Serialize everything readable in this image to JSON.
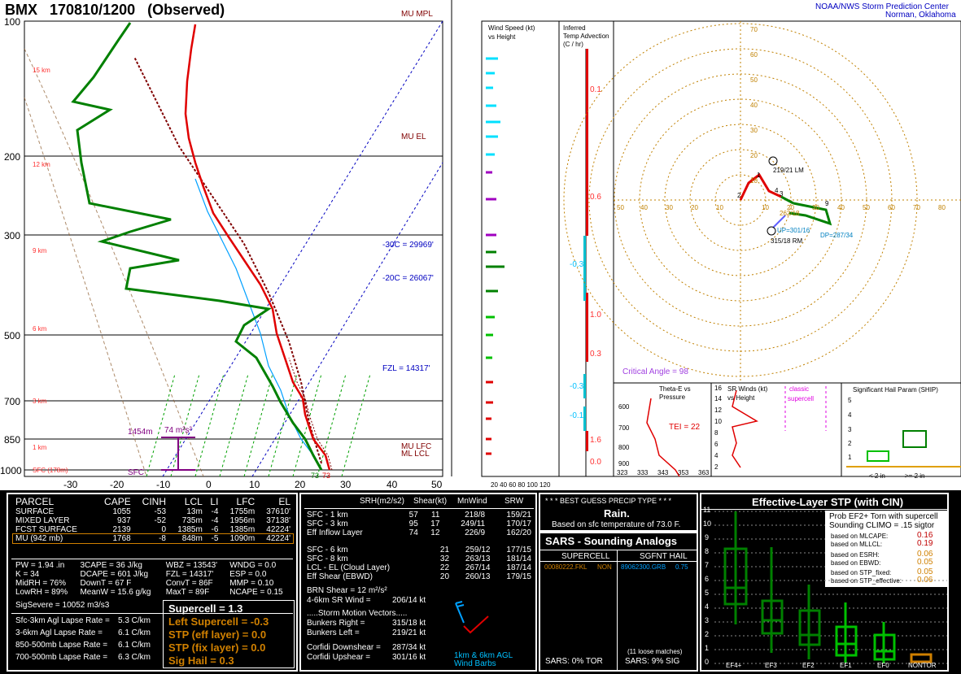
{
  "header": {
    "station": "BMX",
    "datetime": "170810/1200",
    "status": "(Observed)",
    "org_line1": "NOAA/NWS Storm Prediction Center",
    "org_line2": "Norman, Oklahoma"
  },
  "skewt": {
    "pressure_labels": [
      "100",
      "200",
      "300",
      "500",
      "700",
      "850",
      "1000"
    ],
    "temp_labels": [
      "-30",
      "-20",
      "-10",
      "0",
      "10",
      "20",
      "30",
      "40",
      "50"
    ],
    "height_labels": [
      "15 km",
      "12 km",
      "9 km",
      "6 km",
      "3 km",
      "1 km",
      "SFC (178m)"
    ],
    "annotations": {
      "mu_mpl": "MU MPL",
      "mu_el": "MU EL",
      "m30c": "-30C = 29969'",
      "m20c": "-20C = 26067'",
      "fzl": "FZL = 14317'",
      "mu_lfc": "MU LFC",
      "ml_lcl": "ML LCL",
      "sfc": "SFC",
      "sfc_temp": "73",
      "sfc_dew": "73",
      "effective_bottom": "1454m",
      "effective_srh": "74 m²s²"
    },
    "colors": {
      "temp": "#e00000",
      "dewpoint": "#008000",
      "virtual": "#800000",
      "wetbulb": "#00a0ff"
    }
  },
  "wind_panel": {
    "title_line1": "Wind Speed (kt)",
    "title_line2": "vs Height",
    "axis": "20 40 60 80 100 120"
  },
  "advection_panel": {
    "title_line1": "Inferred",
    "title_line2": "Temp Advection",
    "title_line3": "(C / hr)",
    "values": [
      "0.1",
      "0.6",
      "-0.3",
      "1.0",
      "0.3",
      "-0.3",
      "-0.1",
      "1.6",
      "0.0"
    ]
  },
  "hodograph": {
    "rings": [
      "10",
      "20",
      "30",
      "40",
      "50",
      "60",
      "70"
    ],
    "xlabels": [
      "50",
      "40",
      "30",
      "20",
      "10",
      "10",
      "20",
      "30",
      "40",
      "50",
      "60",
      "70",
      "80"
    ],
    "bunkers_left": "219/21 LM",
    "bunkers_right": "315/18 RM",
    "mean_wind_label": "262/18",
    "dp": "DP=287/34",
    "up": "UP=301/16",
    "critical_angle": "Critical Angle = 98",
    "points": [
      "1",
      "2",
      "3",
      "4",
      "9"
    ]
  },
  "theta_panel": {
    "title_line1": "Theta-E vs",
    "title_line2": "Pressure",
    "tei": "TEI = 22",
    "ylabels": [
      "600",
      "700",
      "800",
      "900"
    ],
    "xlabels": [
      "323",
      "333",
      "343",
      "353",
      "363"
    ]
  },
  "srw_panel": {
    "title_line1": "SR Winds (kt)",
    "title_line2": "vs Height",
    "classic_line1": "classic",
    "classic_line2": "supercell",
    "ylabels": [
      "16",
      "14",
      "12",
      "10",
      "8",
      "6",
      "4",
      "2"
    ]
  },
  "ship_panel": {
    "title": "Significant Hail Param (SHIP)",
    "ylabels": [
      "5",
      "4",
      "3",
      "2",
      "1"
    ],
    "x1": "< 2 in",
    "x2": ">= 2 in"
  },
  "parcel": {
    "headers": [
      "PARCEL",
      "CAPE",
      "CINH",
      "LCL",
      "LI",
      "LFC",
      "EL"
    ],
    "rows": [
      [
        "SURFACE",
        "1055",
        "-53",
        "13m",
        "-4",
        "1755m",
        "37610'"
      ],
      [
        "MIXED LAYER",
        "937",
        "-52",
        "735m",
        "-4",
        "1956m",
        "37138'"
      ],
      [
        "FCST SURFACE",
        "2139",
        "0",
        "1385m",
        "-6",
        "1385m",
        "42224'"
      ],
      [
        "MU   (942 mb)",
        "1768",
        "-8",
        "848m",
        "-5",
        "1090m",
        "42224'"
      ]
    ],
    "indices": [
      [
        "PW = 1.94 .in",
        "3CAPE = 36 J/kg",
        "WBZ = 13543'",
        "WNDG = 0.0"
      ],
      [
        "K = 34",
        "DCAPE = 601 J/kg",
        "FZL = 14317'",
        "ESP = 0.0"
      ],
      [
        "MidRH = 76%",
        "DownT = 67 F",
        "ConvT = 86F",
        "MMP = 0.10"
      ],
      [
        "LowRH = 89%",
        "MeanW = 15.6 g/kg",
        "MaxT = 89F",
        "NCAPE = 0.15"
      ]
    ],
    "sigsevere": "SigSevere = 10052 m3/s3",
    "lapse": [
      [
        "Sfc-3km Agl Lapse Rate =",
        "5.3 C/km"
      ],
      [
        "3-6km Agl Lapse Rate =",
        "6.1 C/km"
      ],
      [
        "850-500mb Lapse Rate =",
        "6.1 C/km"
      ],
      [
        "700-500mb Lapse Rate =",
        "6.3 C/km"
      ]
    ],
    "composite": {
      "supercell": "Supercell = 1.3",
      "left_supercell": "Left Supercell = -0.3",
      "stp_eff": "STP (eff layer) = 0.0",
      "stp_fix": "STP (fix layer) = 0.0",
      "sig_hail": "Sig Hail = 0.3"
    }
  },
  "kinematics": {
    "headers": [
      "SRH(m2/s2)",
      "Shear(kt)",
      "MnWind",
      "SRW"
    ],
    "rows1": [
      [
        "SFC - 1 km",
        "57",
        "11",
        "218/8",
        "159/21"
      ],
      [
        "SFC - 3 km",
        "95",
        "17",
        "249/11",
        "170/17"
      ],
      [
        "Eff Inflow Layer",
        "74",
        "12",
        "226/9",
        "162/20"
      ]
    ],
    "rows2": [
      [
        "SFC - 6 km",
        "",
        "21",
        "259/12",
        "177/15"
      ],
      [
        "SFC - 8 km",
        "",
        "32",
        "263/13",
        "181/14"
      ],
      [
        "LCL - EL (Cloud Layer)",
        "",
        "22",
        "267/14",
        "187/14"
      ],
      [
        "Eff Shear (EBWD)",
        "",
        "20",
        "260/13",
        "179/15"
      ]
    ],
    "brn": "BRN Shear =  12 m²/s²",
    "srwind": "4-6km SR Wind =",
    "srwind_val": "206/14 kt",
    "smv_title": ".....Storm Motion Vectors.....",
    "smv": [
      [
        "Bunkers Right =",
        "315/18 kt"
      ],
      [
        "Bunkers Left =",
        "219/21 kt"
      ],
      [
        "Corfidi Downshear =",
        "287/34 kt"
      ],
      [
        "Corfidi Upshear =",
        "301/16 kt"
      ]
    ],
    "barbs_line1": "1km & 6km AGL",
    "barbs_line2": "Wind Barbs"
  },
  "precip": {
    "title": "* * * BEST GUESS PRECIP TYPE * * *",
    "type": "Rain.",
    "basis": "Based on sfc temperature of 73.0 F."
  },
  "sars": {
    "title": "SARS - Sounding Analogs",
    "col1": "SUPERCELL",
    "col2": "SGFNT HAIL",
    "match1": "00080222.FKL",
    "match1_type": "NON",
    "match2": "89062300.GRB",
    "match2_val": "0.75",
    "loose": "(11 loose matches)",
    "tor": "SARS:  0% TOR",
    "sig": "SARS:  9% SIG"
  },
  "stp": {
    "title": "Effective-Layer STP (with CIN)",
    "prob_line1": "Prob EF2+ Torn with supercell",
    "prob_line2": "Sounding CLIMO = .15 sigtor",
    "probs": [
      [
        "based on MLCAPE:",
        "0.16"
      ],
      [
        "based on MLLCL:",
        "0.19"
      ],
      [
        "based on ESRH:",
        "0.06"
      ],
      [
        "based on EBWD:",
        "0.05"
      ],
      [
        "based on STP_fixed:",
        "0.05"
      ],
      [
        "based on STP_effective:",
        "0.06"
      ]
    ],
    "ylabels": [
      "11",
      "10",
      "9",
      "8",
      "7",
      "6",
      "5",
      "4",
      "3",
      "2",
      "1",
      "0"
    ],
    "categories": [
      "EF4+",
      "EF3",
      "EF2",
      "EF1",
      "EF0",
      "NONTOR"
    ]
  }
}
